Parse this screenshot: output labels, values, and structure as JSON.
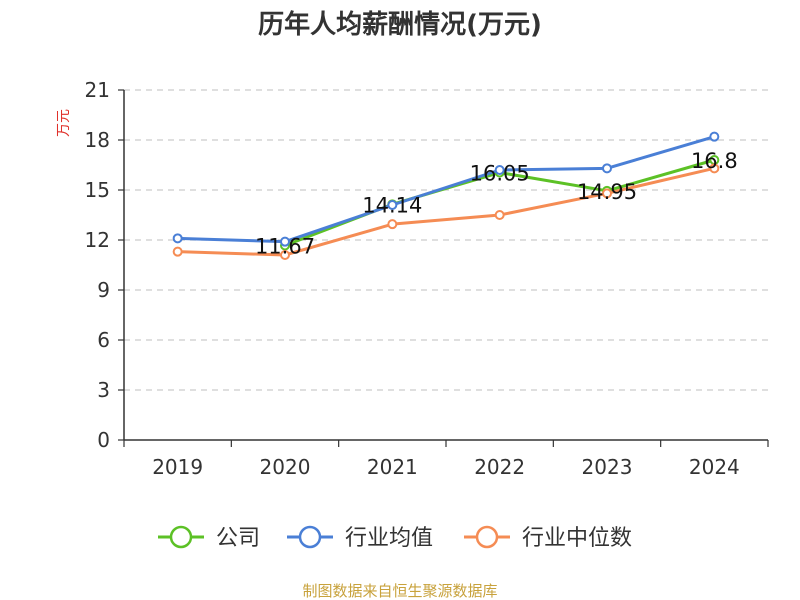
{
  "chart_data": {
    "type": "line",
    "title": "历年人均薪酬情况(万元)",
    "ylabel": "万元",
    "xlabel": "",
    "categories": [
      "2019",
      "2020",
      "2021",
      "2022",
      "2023",
      "2024"
    ],
    "ylim": [
      0,
      21
    ],
    "yticks": [
      0,
      3,
      6,
      9,
      12,
      15,
      18,
      21
    ],
    "grid": true,
    "legend_position": "bottom",
    "series": [
      {
        "name": "公司",
        "color": "#5cc126",
        "values": [
          null,
          11.67,
          14.14,
          16.05,
          14.95,
          16.8
        ],
        "labels": [
          null,
          "11.67",
          "14.14",
          "16.05",
          "14.95",
          "16.8"
        ]
      },
      {
        "name": "行业均值",
        "color": "#4a7fd6",
        "values": [
          12.1,
          11.9,
          14.1,
          16.2,
          16.3,
          18.2
        ]
      },
      {
        "name": "行业中位数",
        "color": "#f58c54",
        "values": [
          11.3,
          11.1,
          12.95,
          13.5,
          14.8,
          16.3
        ]
      }
    ]
  },
  "footer": {
    "source": "制图数据来自恒生聚源数据库"
  }
}
